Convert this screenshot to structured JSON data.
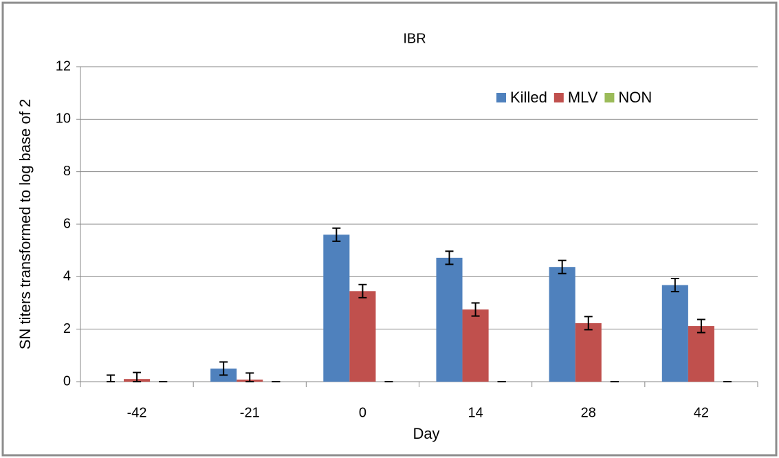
{
  "chart_data": {
    "type": "bar",
    "title": "IBR",
    "x_label": "Day",
    "y_label": "SN titers transformed to log base of 2",
    "categories": [
      "-42",
      "-21",
      "0",
      "14",
      "28",
      "42"
    ],
    "series": [
      {
        "name": "Killed",
        "color": "#4f81bd",
        "values": [
          0,
          0.5,
          5.6,
          4.72,
          4.37,
          3.68
        ],
        "errors": [
          0.25,
          0.25,
          0.25,
          0.25,
          0.25,
          0.25
        ]
      },
      {
        "name": "MLV",
        "color": "#c0504d",
        "values": [
          0.1,
          0.08,
          3.45,
          2.75,
          2.23,
          2.12
        ],
        "errors": [
          0.25,
          0.25,
          0.25,
          0.25,
          0.25,
          0.25
        ]
      },
      {
        "name": "NON",
        "color": "#9bbb59",
        "values": [
          0,
          0,
          0,
          0,
          0,
          0
        ],
        "errors": [
          0,
          0,
          0,
          0,
          0,
          0
        ]
      }
    ],
    "ylim": [
      0,
      12
    ],
    "yticks": [
      0,
      2,
      4,
      6,
      8,
      10,
      12
    ],
    "grid": true,
    "legend": "top-right"
  }
}
